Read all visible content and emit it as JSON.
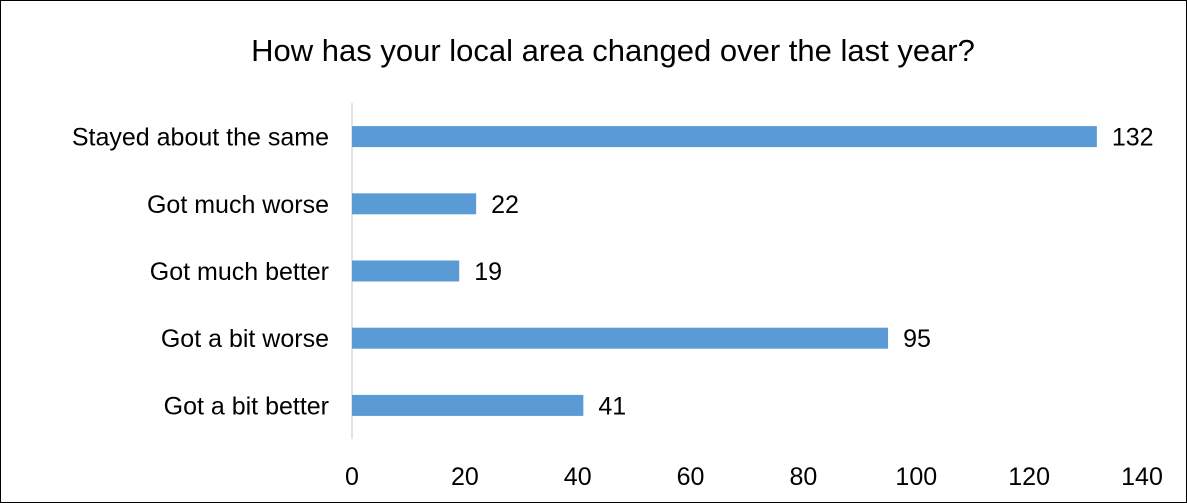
{
  "chart_data": {
    "type": "bar",
    "orientation": "horizontal",
    "title": "How has your local area changed over the last year?",
    "categories": [
      "Got a bit better",
      "Got a bit worse",
      "Got much better",
      "Got much worse",
      "Stayed about the same"
    ],
    "values": [
      41,
      95,
      19,
      22,
      132
    ],
    "xlim": [
      0,
      140
    ],
    "xticks": [
      0,
      20,
      40,
      60,
      80,
      100,
      120,
      140
    ],
    "xlabel": "",
    "ylabel": "",
    "grid": false,
    "legend": "none",
    "data_labels": true,
    "bar_color": "#5b9bd5",
    "axis_line_color": "#d9d9d9"
  }
}
